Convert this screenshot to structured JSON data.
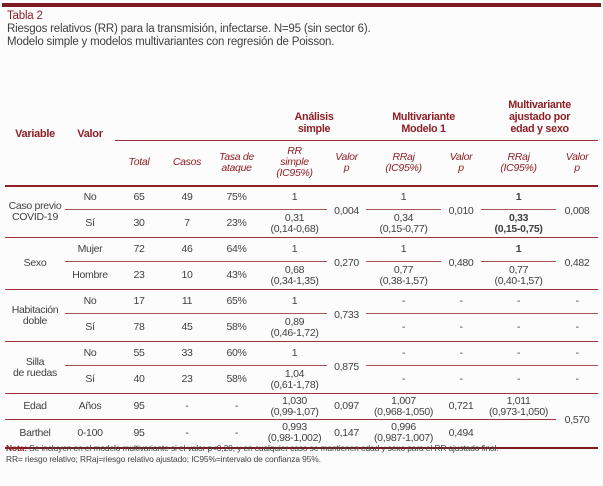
{
  "page": {
    "title": "Tabla 2",
    "subtitle1": "Riesgos relativos (RR) para la transmisión, infectarse. N=95 (sin sector 6).",
    "subtitle2": "Modelo simple y modelos multivariantes con regresión de Poisson."
  },
  "colors": {
    "accent": "#8e2026",
    "rule": "#9b3338",
    "topbar": "#7d1b20",
    "text": "#414043"
  },
  "table": {
    "head": {
      "variable": "Variable",
      "valor": "Valor",
      "group_simple": "Análisis\nsimple",
      "group_m1": "Multivariante\nModelo 1",
      "group_adj": "Multivariante\najustado por\nedad y sexo",
      "total": "Total",
      "casos": "Casos",
      "tasa": "Tasa de\nataque",
      "rr_simple": "RR\nsimple\n(IC95%)",
      "valor_p": "Valor\np",
      "rraj": "RRaj\n(IC95%)"
    },
    "body": {
      "covid": {
        "name": "Caso previo\nCOVID-19",
        "r1": {
          "valor": "No",
          "total": "65",
          "casos": "49",
          "tasa": "75%",
          "rr": "1",
          "rraj1": "1",
          "rraj2": "1"
        },
        "r2": {
          "valor": "Sí",
          "total": "30",
          "casos": "7",
          "tasa": "23%",
          "rr": "0,31\n(0,14-0,68)",
          "rraj1": "0,34\n(0,15-0,77)",
          "rraj2": "0,33\n(0,15-0,75)"
        },
        "ps": "0,004",
        "pm1": "0,010",
        "padj": "0,008"
      },
      "sexo": {
        "name": "Sexo",
        "r1": {
          "valor": "Mujer",
          "total": "72",
          "casos": "46",
          "tasa": "64%",
          "rr": "1",
          "rraj1": "1",
          "rraj2": "1"
        },
        "r2": {
          "valor": "Hombre",
          "total": "23",
          "casos": "10",
          "tasa": "43%",
          "rr": "0,68\n(0,34-1,35)",
          "rraj1": "0,77\n(0,38-1,57)",
          "rraj2": "0,77\n(0,40-1,57)"
        },
        "ps": "0,270",
        "pm1": "0,480",
        "padj": "0,482"
      },
      "hab": {
        "name": "Habitación\ndoble",
        "r1": {
          "valor": "No",
          "total": "17",
          "casos": "11",
          "tasa": "65%",
          "rr": "1",
          "rraj1": "-",
          "pm1": "-",
          "rraj2": "-",
          "padj": "-"
        },
        "r2": {
          "valor": "Sí",
          "total": "78",
          "casos": "45",
          "tasa": "58%",
          "rr": "0,89\n(0,46-1,72)",
          "rraj1": "-",
          "pm1": "-",
          "rraj2": "-",
          "padj": "-"
        },
        "ps": "0,733"
      },
      "silla": {
        "name": "Silla\nde ruedas",
        "r1": {
          "valor": "No",
          "total": "55",
          "casos": "33",
          "tasa": "60%",
          "rr": "1",
          "rraj1": "-",
          "pm1": "-",
          "rraj2": "-",
          "padj": "-"
        },
        "r2": {
          "valor": "Sí",
          "total": "40",
          "casos": "23",
          "tasa": "58%",
          "rr": "1,04\n(0,61-1,78)",
          "rraj1": "-",
          "pm1": "-",
          "rraj2": "-",
          "padj": "-"
        },
        "ps": "0,875"
      },
      "edad": {
        "name": "Edad",
        "valor": "Años",
        "total": "95",
        "casos": "-",
        "tasa": "-",
        "rr": "1,030\n(0,99-1,07)",
        "ps": "0,097",
        "rraj1": "1,007\n(0,968-1,050)",
        "pm1": "0,721",
        "rraj2": "1,011\n(0,973-1,050)"
      },
      "barthel": {
        "name": "Barthel",
        "valor": "0-100",
        "total": "95",
        "casos": "-",
        "tasa": "-",
        "rr": "0,993\n(0,98-1,002)",
        "ps": "0,147",
        "rraj1": "0,996\n(0,987-1,007)",
        "pm1": "0,494",
        "rraj2": ""
      },
      "padj_edad_barthel": "0,570"
    }
  },
  "note": {
    "label": "Nota:",
    "line1": " Se incluyen en el modelo multivariante si el valor p<0,20, y en cualquier caso se mantienen edad y sexo para el RR ajustado final.",
    "line2": "RR= riesgo relativo; RRaj=riesgo relativo ajustado; IC95%=intervalo de confianza 95%."
  }
}
